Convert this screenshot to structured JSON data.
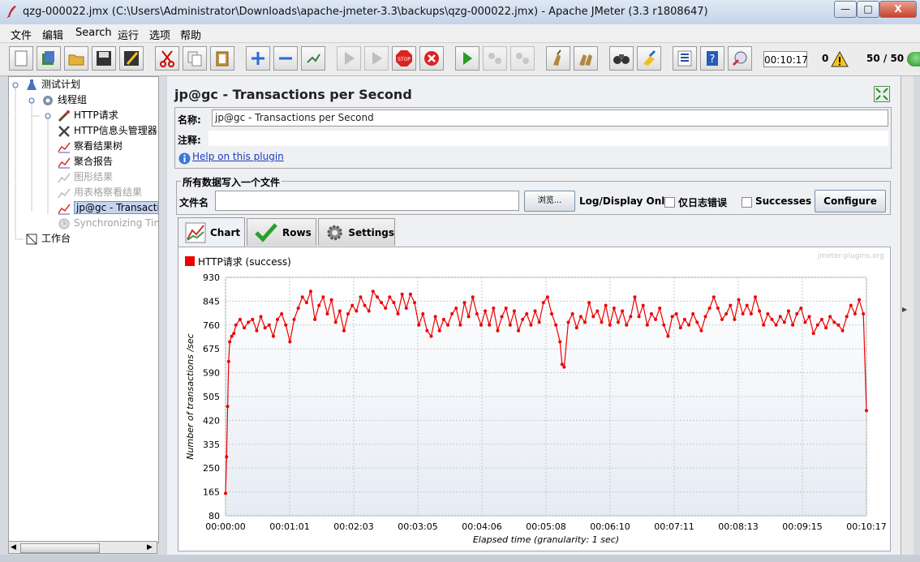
{
  "window": {
    "title": "qzg-000022.jmx (C:\\Users\\Administrator\\Downloads\\apache-jmeter-3.3\\backups\\qzg-000022.jmx) - Apache JMeter (3.3 r1808647)",
    "minimize": "—",
    "maximize": "□",
    "close": "X"
  },
  "menu": [
    "文件",
    "编辑",
    "Search",
    "运行",
    "选项",
    "帮助"
  ],
  "toolbar": {
    "icons": [
      "new-icon",
      "templates-icon",
      "open-icon",
      "save-icon",
      "save-as-icon",
      "cut-icon",
      "copy-icon",
      "paste-icon",
      "expand-icon",
      "collapse-icon",
      "toggle-icon",
      "start-icon",
      "start-no-pause-icon",
      "stop-icon",
      "shutdown-icon",
      "remote-start-icon",
      "remote-stop-icon",
      "remote-shutdown-icon",
      "clear-icon",
      "clear-all-icon",
      "search-icon",
      "reset-search-icon",
      "function-helper-icon",
      "help-icon",
      "log-viewer-icon"
    ],
    "timer": "00:10:17",
    "error_count": "0",
    "threads": "50 / 50"
  },
  "tree": [
    {
      "label": "测试计划",
      "icon": "test-plan-icon",
      "disabled": false,
      "selected": false
    },
    {
      "label": "线程组",
      "icon": "thread-group-icon",
      "disabled": false,
      "selected": false
    },
    {
      "label": "HTTP请求",
      "icon": "http-sampler-icon",
      "disabled": false,
      "selected": false
    },
    {
      "label": "HTTP信息头管理器",
      "icon": "header-manager-icon",
      "disabled": false,
      "selected": false
    },
    {
      "label": "察看结果树",
      "icon": "listener-icon",
      "disabled": false,
      "selected": false
    },
    {
      "label": "聚合报告",
      "icon": "listener-icon",
      "disabled": false,
      "selected": false
    },
    {
      "label": "图形结果",
      "icon": "listener-icon",
      "disabled": true,
      "selected": false
    },
    {
      "label": "用表格察看结果",
      "icon": "listener-icon",
      "disabled": true,
      "selected": false
    },
    {
      "label": "jp@gc - Transactio",
      "icon": "listener-icon",
      "disabled": false,
      "selected": true
    },
    {
      "label": "Synchronizing Tim",
      "icon": "timer-icon",
      "disabled": true,
      "selected": false
    },
    {
      "label": "工作台",
      "icon": "workbench-icon",
      "disabled": false,
      "selected": false
    }
  ],
  "panel": {
    "title": "jp@gc - Transactions per Second",
    "name_label": "名称:",
    "name_value": "jp@gc - Transactions per Second",
    "comment_label": "注释:",
    "comment_value": "",
    "help_link": "Help on this plugin",
    "file_section_title": "所有数据写入一个文件",
    "filename_label": "文件名",
    "filename_value": "",
    "browse_button": "浏览...",
    "log_display_label": "Log/Display Only:",
    "errors_only_label": "仅日志错误",
    "successes_label": "Successes",
    "configure_button": "Configure",
    "tabs": [
      "Chart",
      "Rows",
      "Settings"
    ],
    "active_tab": "Chart"
  },
  "chart_data": {
    "type": "line",
    "title": "",
    "watermark": "jmeter-plugins.org",
    "xlabel": "Elapsed time (granularity: 1 sec)",
    "ylabel": "Number of transactions /sec",
    "ylim": [
      80,
      930
    ],
    "y_ticks": [
      "930",
      "845",
      "760",
      "675",
      "590",
      "505",
      "420",
      "335",
      "250",
      "165",
      "80"
    ],
    "x_ticks": [
      "00:00:00",
      "00:01:01",
      "00:02:03",
      "00:03:05",
      "00:04:06",
      "00:05:08",
      "00:06:10",
      "00:07:11",
      "00:08:13",
      "00:09:15",
      "00:10:17"
    ],
    "x_range_seconds": [
      0,
      617
    ],
    "grid": true,
    "legend_position": "top-left",
    "series": [
      {
        "name": "HTTP请求 (success)",
        "color": "#ee0000",
        "points": [
          [
            0,
            160
          ],
          [
            1,
            290
          ],
          [
            2,
            470
          ],
          [
            3,
            630
          ],
          [
            4,
            700
          ],
          [
            6,
            720
          ],
          [
            8,
            730
          ],
          [
            10,
            760
          ],
          [
            14,
            780
          ],
          [
            18,
            750
          ],
          [
            22,
            770
          ],
          [
            26,
            780
          ],
          [
            30,
            740
          ],
          [
            34,
            790
          ],
          [
            38,
            750
          ],
          [
            42,
            760
          ],
          [
            46,
            720
          ],
          [
            50,
            780
          ],
          [
            54,
            800
          ],
          [
            58,
            760
          ],
          [
            62,
            700
          ],
          [
            66,
            780
          ],
          [
            70,
            820
          ],
          [
            74,
            860
          ],
          [
            78,
            840
          ],
          [
            82,
            880
          ],
          [
            86,
            780
          ],
          [
            90,
            830
          ],
          [
            94,
            860
          ],
          [
            98,
            800
          ],
          [
            102,
            850
          ],
          [
            106,
            770
          ],
          [
            110,
            810
          ],
          [
            114,
            740
          ],
          [
            118,
            800
          ],
          [
            122,
            830
          ],
          [
            126,
            810
          ],
          [
            130,
            860
          ],
          [
            134,
            830
          ],
          [
            138,
            810
          ],
          [
            142,
            880
          ],
          [
            146,
            860
          ],
          [
            150,
            840
          ],
          [
            154,
            820
          ],
          [
            158,
            860
          ],
          [
            162,
            840
          ],
          [
            166,
            800
          ],
          [
            170,
            870
          ],
          [
            174,
            820
          ],
          [
            178,
            870
          ],
          [
            182,
            840
          ],
          [
            186,
            760
          ],
          [
            190,
            800
          ],
          [
            194,
            740
          ],
          [
            198,
            720
          ],
          [
            202,
            790
          ],
          [
            206,
            740
          ],
          [
            210,
            780
          ],
          [
            214,
            760
          ],
          [
            218,
            800
          ],
          [
            222,
            820
          ],
          [
            226,
            760
          ],
          [
            230,
            840
          ],
          [
            234,
            790
          ],
          [
            238,
            860
          ],
          [
            242,
            800
          ],
          [
            246,
            760
          ],
          [
            250,
            810
          ],
          [
            254,
            760
          ],
          [
            258,
            820
          ],
          [
            262,
            740
          ],
          [
            266,
            790
          ],
          [
            270,
            820
          ],
          [
            274,
            760
          ],
          [
            278,
            810
          ],
          [
            282,
            740
          ],
          [
            286,
            780
          ],
          [
            290,
            800
          ],
          [
            294,
            760
          ],
          [
            298,
            810
          ],
          [
            302,
            770
          ],
          [
            306,
            840
          ],
          [
            310,
            860
          ],
          [
            314,
            800
          ],
          [
            318,
            760
          ],
          [
            322,
            700
          ],
          [
            324,
            620
          ],
          [
            326,
            610
          ],
          [
            330,
            770
          ],
          [
            334,
            800
          ],
          [
            338,
            750
          ],
          [
            342,
            790
          ],
          [
            346,
            770
          ],
          [
            350,
            840
          ],
          [
            354,
            790
          ],
          [
            358,
            810
          ],
          [
            362,
            770
          ],
          [
            366,
            830
          ],
          [
            370,
            760
          ],
          [
            374,
            820
          ],
          [
            378,
            770
          ],
          [
            382,
            810
          ],
          [
            386,
            760
          ],
          [
            390,
            790
          ],
          [
            394,
            860
          ],
          [
            398,
            790
          ],
          [
            402,
            830
          ],
          [
            406,
            760
          ],
          [
            410,
            800
          ],
          [
            414,
            780
          ],
          [
            418,
            820
          ],
          [
            422,
            760
          ],
          [
            426,
            720
          ],
          [
            430,
            790
          ],
          [
            434,
            800
          ],
          [
            438,
            750
          ],
          [
            442,
            780
          ],
          [
            446,
            760
          ],
          [
            450,
            800
          ],
          [
            454,
            770
          ],
          [
            458,
            740
          ],
          [
            462,
            790
          ],
          [
            466,
            820
          ],
          [
            470,
            860
          ],
          [
            474,
            820
          ],
          [
            478,
            780
          ],
          [
            482,
            800
          ],
          [
            486,
            830
          ],
          [
            490,
            780
          ],
          [
            494,
            850
          ],
          [
            498,
            800
          ],
          [
            502,
            830
          ],
          [
            506,
            800
          ],
          [
            510,
            860
          ],
          [
            514,
            810
          ],
          [
            518,
            760
          ],
          [
            522,
            800
          ],
          [
            526,
            780
          ],
          [
            530,
            760
          ],
          [
            534,
            790
          ],
          [
            538,
            770
          ],
          [
            542,
            810
          ],
          [
            546,
            760
          ],
          [
            550,
            800
          ],
          [
            554,
            820
          ],
          [
            558,
            770
          ],
          [
            562,
            790
          ],
          [
            566,
            730
          ],
          [
            570,
            760
          ],
          [
            574,
            780
          ],
          [
            578,
            750
          ],
          [
            582,
            790
          ],
          [
            586,
            770
          ],
          [
            590,
            760
          ],
          [
            594,
            740
          ],
          [
            598,
            790
          ],
          [
            602,
            830
          ],
          [
            606,
            800
          ],
          [
            610,
            850
          ],
          [
            614,
            800
          ],
          [
            617,
            455
          ]
        ]
      }
    ]
  }
}
